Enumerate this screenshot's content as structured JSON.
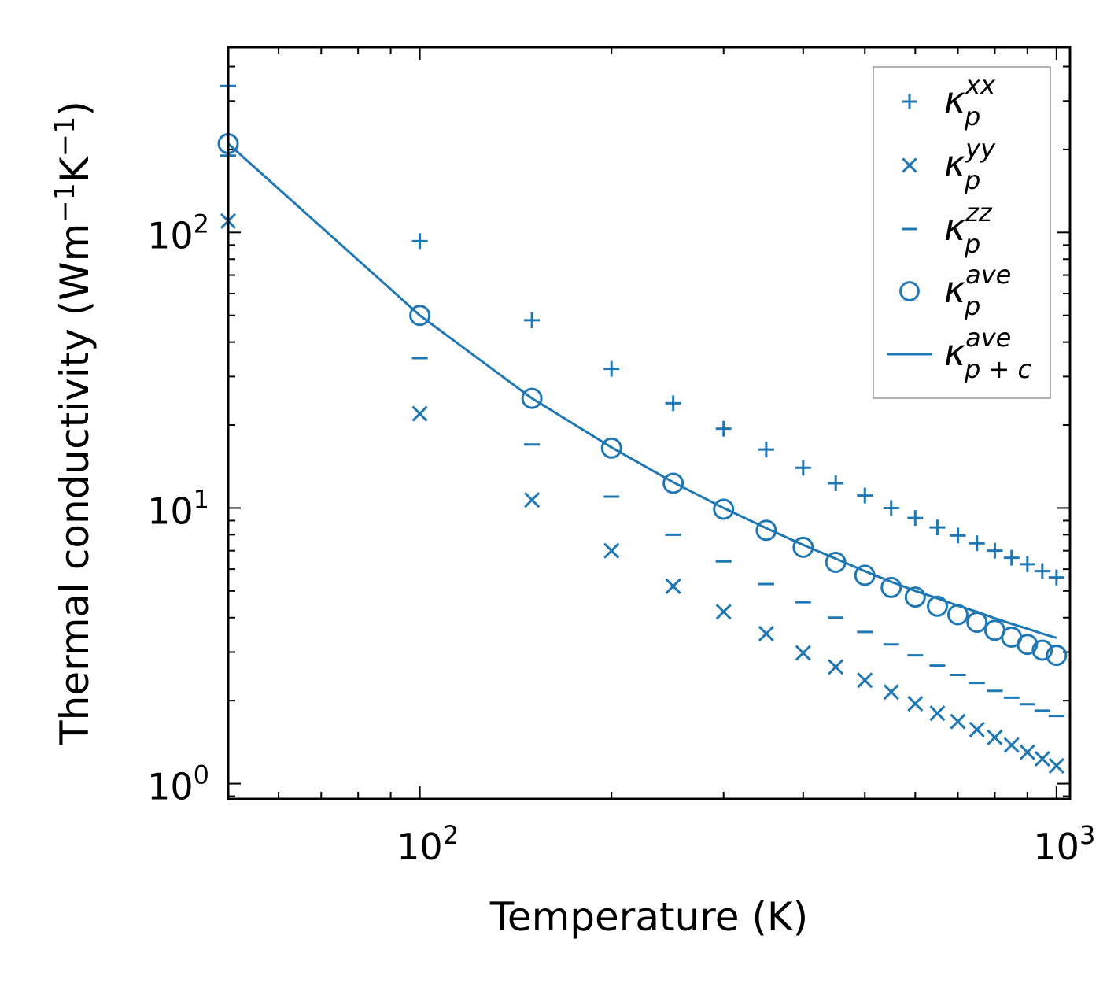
{
  "chart_data": {
    "type": "scatter",
    "title": "",
    "xlabel": "Temperature (K)",
    "ylabel": {
      "main": "Thermal conductivity (Wm",
      "exp1": "−1",
      "unit2": "K",
      "exp2": "−1",
      "close": ")"
    },
    "xscale": "log",
    "yscale": "log",
    "xlim": [
      50,
      1050
    ],
    "ylim": [
      0.88,
      470
    ],
    "x_ticks": [
      {
        "value": 100,
        "base": "10",
        "exp": "2"
      },
      {
        "value": 1000,
        "base": "10",
        "exp": "3"
      }
    ],
    "y_ticks": [
      {
        "value": 1,
        "base": "10",
        "exp": "0"
      },
      {
        "value": 10,
        "base": "10",
        "exp": "1"
      },
      {
        "value": 100,
        "base": "10",
        "exp": "2"
      }
    ],
    "color": "#1f77b4",
    "legend_position": "top-right",
    "x": [
      50,
      100,
      150,
      200,
      250,
      300,
      350,
      400,
      450,
      500,
      550,
      600,
      650,
      700,
      750,
      800,
      850,
      900,
      950,
      1000
    ],
    "series": [
      {
        "name": "kappa_p_xx",
        "label": {
          "base": "κ",
          "sub": "p",
          "sup": "xx"
        },
        "marker": "plus",
        "values": [
          340,
          93,
          48,
          32,
          24,
          19.4,
          16.3,
          14.0,
          12.3,
          11.1,
          10.0,
          9.2,
          8.5,
          7.95,
          7.45,
          7.0,
          6.6,
          6.25,
          5.9,
          5.6
        ]
      },
      {
        "name": "kappa_p_yy",
        "label": {
          "base": "κ",
          "sub": "p",
          "sup": "yy"
        },
        "marker": "x",
        "values": [
          110,
          22,
          10.7,
          7.0,
          5.2,
          4.2,
          3.5,
          2.98,
          2.65,
          2.37,
          2.15,
          1.95,
          1.8,
          1.68,
          1.57,
          1.47,
          1.38,
          1.3,
          1.23,
          1.16
        ]
      },
      {
        "name": "kappa_p_zz",
        "label": {
          "base": "κ",
          "sub": "p",
          "sup": "zz"
        },
        "marker": "hline",
        "values": [
          190,
          35,
          17,
          11,
          8.0,
          6.4,
          5.3,
          4.55,
          4.0,
          3.55,
          3.2,
          2.92,
          2.68,
          2.48,
          2.32,
          2.17,
          2.05,
          1.94,
          1.84,
          1.76
        ]
      },
      {
        "name": "kappa_p_ave",
        "label": {
          "base": "κ",
          "sub": "p",
          "sup": "ave"
        },
        "marker": "circle",
        "values": [
          210,
          50,
          25,
          16.5,
          12.3,
          9.9,
          8.3,
          7.2,
          6.35,
          5.7,
          5.15,
          4.75,
          4.4,
          4.1,
          3.85,
          3.6,
          3.4,
          3.2,
          3.05,
          2.92
        ]
      },
      {
        "name": "kappa_p_plus_c_ave",
        "label": {
          "base": "κ",
          "sub": "p + c",
          "sup": "ave"
        },
        "marker": "line",
        "values": [
          210,
          50,
          25,
          16.6,
          12.4,
          10.0,
          8.45,
          7.35,
          6.55,
          5.9,
          5.4,
          5.0,
          4.7,
          4.42,
          4.2,
          3.98,
          3.8,
          3.65,
          3.5,
          3.38
        ]
      }
    ]
  }
}
